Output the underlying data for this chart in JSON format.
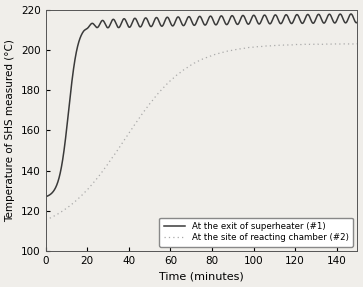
{
  "title": "",
  "xlabel": "Time (minutes)",
  "ylabel": "Temperature of SHS measured (°C)",
  "xlim": [
    0,
    150
  ],
  "ylim": [
    100,
    220
  ],
  "xticks": [
    0,
    20,
    40,
    60,
    80,
    100,
    120,
    140
  ],
  "yticks": [
    100,
    120,
    140,
    160,
    180,
    200,
    220
  ],
  "legend": [
    "At the exit of superheater (#1)",
    "At the site of reacting chamber (#2)"
  ],
  "line1_color": "#3a3a3a",
  "line2_color": "#aaaaaa",
  "background_color": "#f0eeea"
}
